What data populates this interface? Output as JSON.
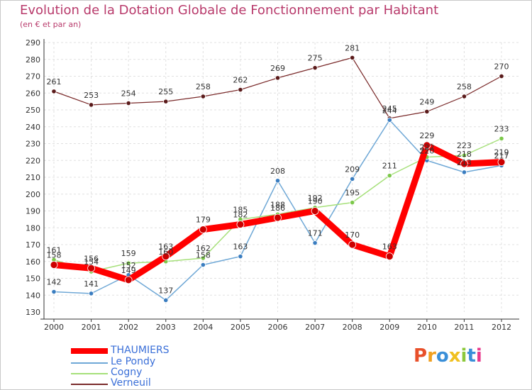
{
  "title": "Evolution de la Dotation Globale de Fonctionnement par Habitant",
  "subtitle": "(en € et par an)",
  "logo": {
    "text": "Proxiti",
    "colors": [
      "#e8502a",
      "#f0a020",
      "#3a8fd8",
      "#f0c020",
      "#8cc83c",
      "#3a8fd8",
      "#e83a8c"
    ]
  },
  "chart_data": {
    "type": "line",
    "title": "Evolution de la Dotation Globale de Fonctionnement par Habitant",
    "subtitle": "(en € et par an)",
    "xlabel": "",
    "ylabel": "",
    "ylim": [
      130,
      290
    ],
    "yticks": [
      130,
      140,
      150,
      160,
      170,
      180,
      190,
      200,
      210,
      220,
      230,
      240,
      250,
      260,
      270,
      280,
      290
    ],
    "categories": [
      "2000",
      "2001",
      "2002",
      "2003",
      "2004",
      "2005",
      "2006",
      "2007",
      "2008",
      "2009",
      "2010",
      "2011",
      "2012"
    ],
    "series": [
      {
        "name": "THAUMIERS",
        "color": "#ff0000",
        "marker": "#cc0000",
        "width": 9,
        "values": [
          158,
          156,
          149,
          163,
          179,
          182,
          186,
          190,
          170,
          163,
          229,
          218,
          219
        ]
      },
      {
        "name": "Le Pondy",
        "color": "#6fa8d6",
        "marker": "#3a7dc0",
        "width": 1.5,
        "values": [
          142,
          141,
          152,
          137,
          158,
          163,
          208,
          171,
          209,
          244,
          220,
          213,
          217
        ]
      },
      {
        "name": "Cogny",
        "color": "#a6e07a",
        "marker": "#7cc84a",
        "width": 1.5,
        "values": [
          161,
          154,
          159,
          160,
          162,
          185,
          188,
          192,
          195,
          211,
          222,
          223,
          233
        ]
      },
      {
        "name": "Verneuil",
        "color": "#7a2a2a",
        "marker": "#5a1a1a",
        "width": 1.2,
        "values": [
          261,
          253,
          254,
          255,
          258,
          262,
          269,
          275,
          281,
          245,
          249,
          258,
          270
        ]
      }
    ],
    "legend_position": "bottom-left",
    "grid": true
  }
}
